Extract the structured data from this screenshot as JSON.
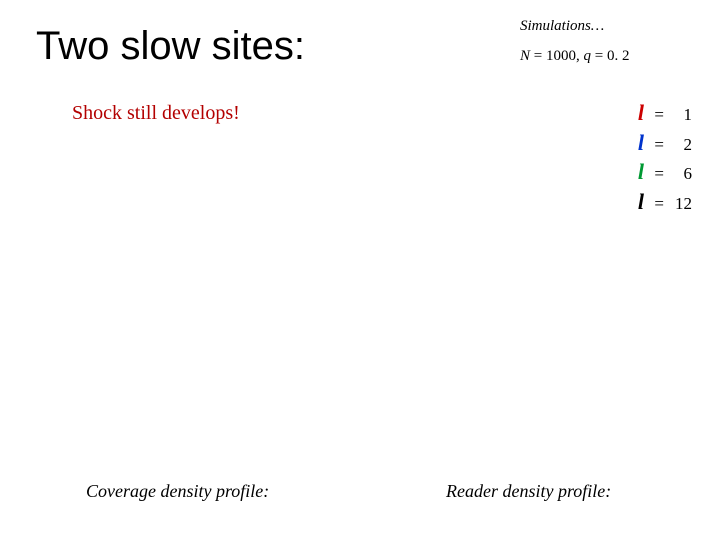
{
  "title": "Two slow sites:",
  "title_color": "#000000",
  "title_fontsize": 40,
  "header_note": "Simulations…",
  "header_note_fontsize": 15,
  "params_text": "N = 1000, q = 0. 2",
  "params_fontsize": 15,
  "subtitle": "Shock still develops!",
  "subtitle_color": "#b30000",
  "subtitle_fontsize": 20,
  "legend": {
    "symbol": "l",
    "items": [
      {
        "val": "1",
        "color": "#cc0000"
      },
      {
        "val": "2",
        "color": "#0033cc"
      },
      {
        "val": "6",
        "color": "#009933"
      },
      {
        "val": "12",
        "color": "#000000"
      }
    ],
    "fontsize": 18
  },
  "captions": {
    "left": "Coverage density profile:",
    "right": "Reader density profile:",
    "fontsize": 18
  },
  "background_color": "#ffffff"
}
